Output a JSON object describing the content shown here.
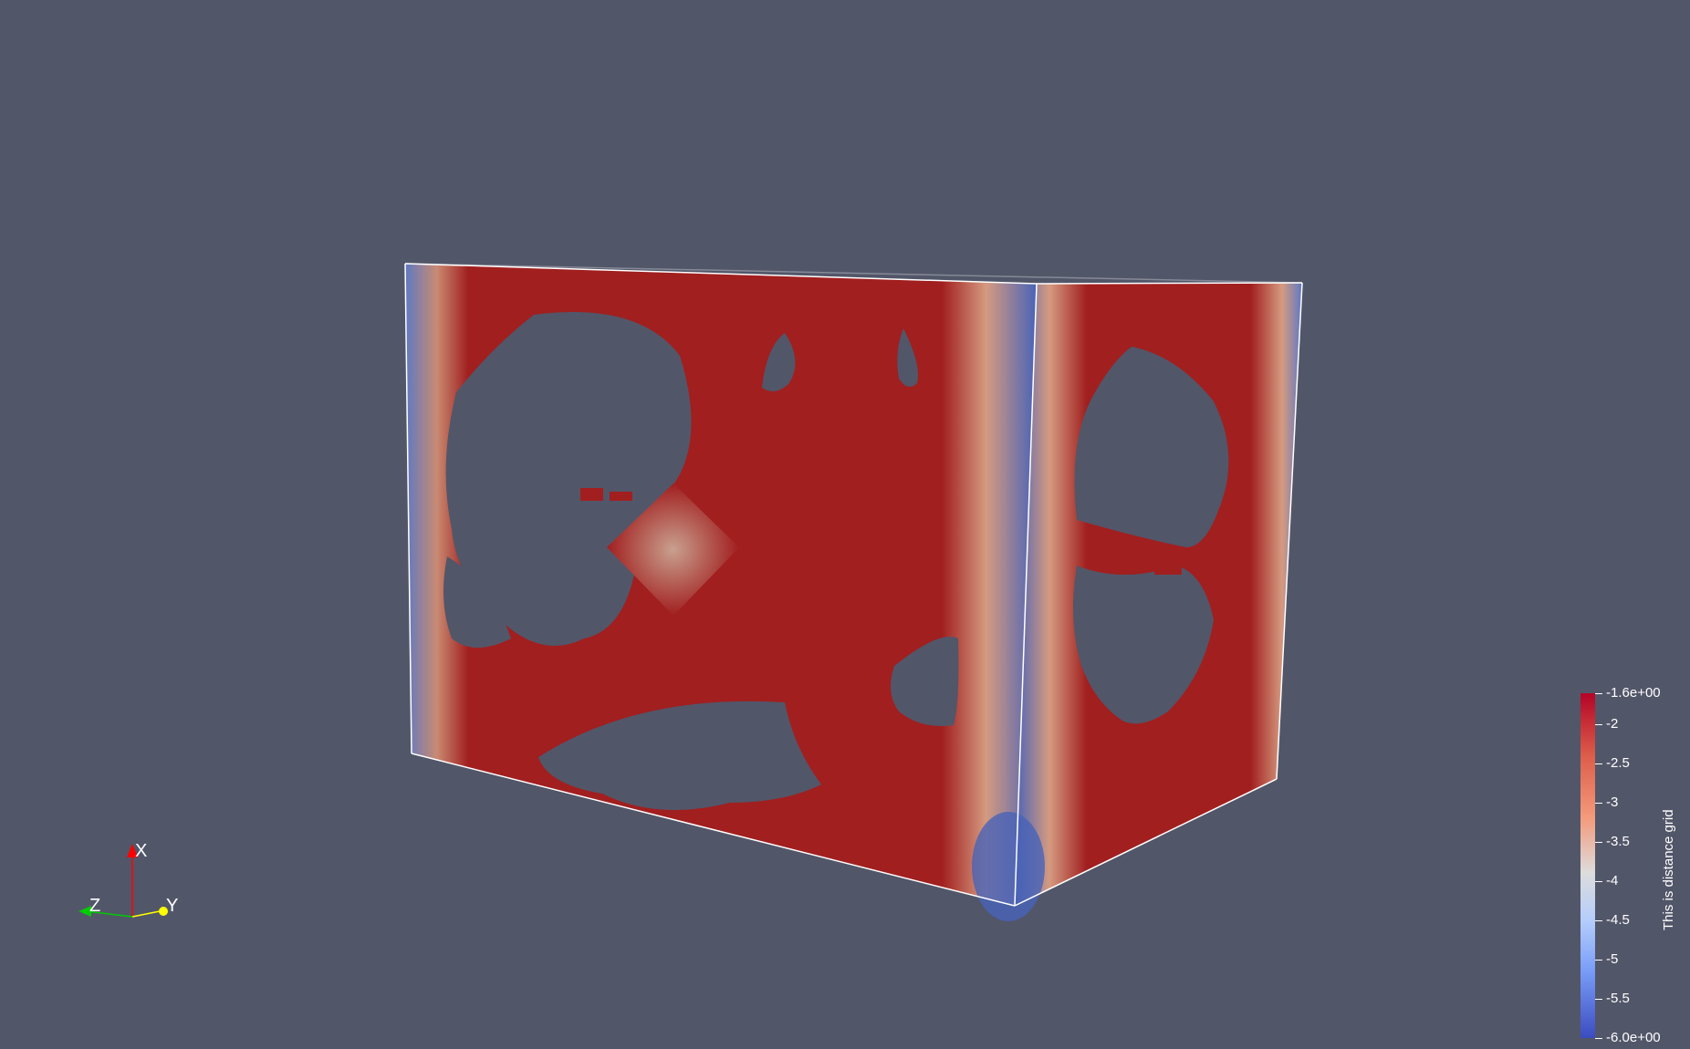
{
  "viewport": {
    "background": "#525669",
    "scene_description_icon": "3d-box-icon"
  },
  "colorbar": {
    "title": "This is distance grid",
    "range": [
      -6.0,
      -1.6
    ],
    "ticks": [
      {
        "value": -1.6,
        "label": "-1.6e+00"
      },
      {
        "value": -2,
        "label": "-2"
      },
      {
        "value": -2.5,
        "label": "-2.5"
      },
      {
        "value": -3,
        "label": "-3"
      },
      {
        "value": -3.5,
        "label": "-3.5"
      },
      {
        "value": -4,
        "label": "-4"
      },
      {
        "value": -4.5,
        "label": "-4.5"
      },
      {
        "value": -5,
        "label": "-5"
      },
      {
        "value": -5.5,
        "label": "-5.5"
      },
      {
        "value": -6.0,
        "label": "-6.0e+00"
      }
    ],
    "colors": {
      "high": "#b40426",
      "mid": "#dddcdc",
      "low": "#3b4cc0"
    }
  },
  "orientation_axes": {
    "x_label": "X",
    "y_label": "Y",
    "z_label": "Z",
    "x_color": "#ff0000",
    "y_color": "#ffff00",
    "z_color": "#00cc00"
  }
}
